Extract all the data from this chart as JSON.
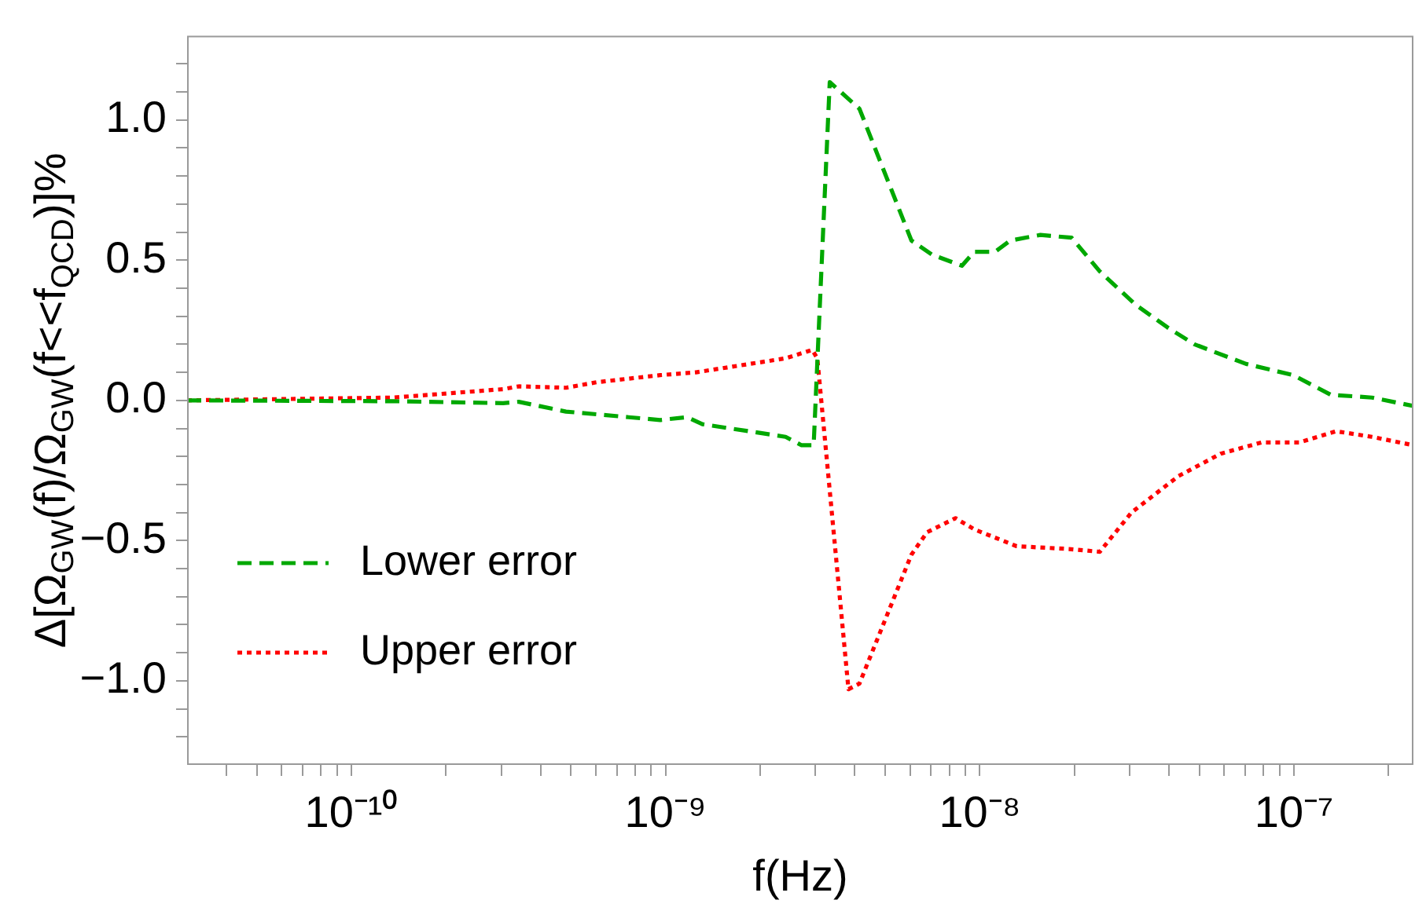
{
  "chart_data": {
    "type": "line",
    "xlabel": "f(Hz)",
    "ylabel": "Δ[Ω$_{GW}$(f)/Ω$_{GW}$(f<<f$_{QCD}$)]%",
    "log": "x",
    "xlim": [
      3e-11,
      2.4e-07
    ],
    "ylim": [
      -1.3,
      1.3
    ],
    "xticks": [
      {
        "value": 4e-11,
        "label": null
      },
      {
        "value": 5e-11,
        "label": null
      },
      {
        "value": 6e-11,
        "label": null
      },
      {
        "value": 7e-11,
        "label": null
      },
      {
        "value": 8e-11,
        "label": null
      },
      {
        "value": 9e-11,
        "label": null
      },
      {
        "value": 1e-10,
        "label": "10⁻¹⁰"
      },
      {
        "value": 2e-10,
        "label": null
      },
      {
        "value": 3e-10,
        "label": null
      },
      {
        "value": 4e-10,
        "label": null
      },
      {
        "value": 5e-10,
        "label": null
      },
      {
        "value": 6e-10,
        "label": null
      },
      {
        "value": 7e-10,
        "label": null
      },
      {
        "value": 8e-10,
        "label": null
      },
      {
        "value": 9e-10,
        "label": null
      },
      {
        "value": 1e-09,
        "label": "10⁻⁹"
      },
      {
        "value": 2e-09,
        "label": null
      },
      {
        "value": 3e-09,
        "label": null
      },
      {
        "value": 4e-09,
        "label": null
      },
      {
        "value": 5e-09,
        "label": null
      },
      {
        "value": 6e-09,
        "label": null
      },
      {
        "value": 7e-09,
        "label": null
      },
      {
        "value": 8e-09,
        "label": null
      },
      {
        "value": 9e-09,
        "label": null
      },
      {
        "value": 1e-08,
        "label": "10⁻⁸"
      },
      {
        "value": 2e-08,
        "label": null
      },
      {
        "value": 3e-08,
        "label": null
      },
      {
        "value": 4e-08,
        "label": null
      },
      {
        "value": 5e-08,
        "label": null
      },
      {
        "value": 6e-08,
        "label": null
      },
      {
        "value": 7e-08,
        "label": null
      },
      {
        "value": 8e-08,
        "label": null
      },
      {
        "value": 9e-08,
        "label": null
      },
      {
        "value": 1e-07,
        "label": "10⁻⁷"
      },
      {
        "value": 2e-07,
        "label": null
      }
    ],
    "yticks": [
      {
        "value": -1.2,
        "label": null
      },
      {
        "value": -1.1,
        "label": null
      },
      {
        "value": -1.0,
        "label": "−1.0"
      },
      {
        "value": -0.9,
        "label": null
      },
      {
        "value": -0.8,
        "label": null
      },
      {
        "value": -0.7,
        "label": null
      },
      {
        "value": -0.6,
        "label": null
      },
      {
        "value": -0.5,
        "label": "−0.5"
      },
      {
        "value": -0.4,
        "label": null
      },
      {
        "value": -0.3,
        "label": null
      },
      {
        "value": -0.2,
        "label": null
      },
      {
        "value": -0.1,
        "label": null
      },
      {
        "value": 0,
        "label": "0.0"
      },
      {
        "value": 0.1,
        "label": null
      },
      {
        "value": 0.2,
        "label": null
      },
      {
        "value": 0.3,
        "label": null
      },
      {
        "value": 0.4,
        "label": null
      },
      {
        "value": 0.5,
        "label": "0.5"
      },
      {
        "value": 0.6,
        "label": null
      },
      {
        "value": 0.7,
        "label": null
      },
      {
        "value": 0.8,
        "label": null
      },
      {
        "value": 0.9,
        "label": null
      },
      {
        "value": 1.0,
        "label": "1.0"
      },
      {
        "value": 1.1,
        "label": null
      },
      {
        "value": 1.2,
        "label": null
      }
    ],
    "legend": "bottom left",
    "marker": "none",
    "series": [
      {
        "name": "Lower error",
        "color": "#00a800",
        "line_style": "dashed",
        "x": [
          3e-11,
          1.36e-10,
          3.04e-10,
          3.41e-10,
          4.82e-10,
          7.63e-10,
          9.61e-10,
          1.17e-09,
          1.31e-09,
          2.41e-09,
          2.71e-09,
          2.96e-09,
          3.33e-09,
          4.14e-09,
          6.06e-09,
          7.04e-09,
          8.77e-09,
          9.61e-09,
          1.12e-08,
          1.25e-08,
          1.56e-08,
          1.96e-08,
          2.41e-08,
          3.14e-08,
          3.96e-08,
          4.82e-08,
          7.04e-08,
          9.94e-08,
          1.31e-07,
          1.77e-07,
          2.4e-07
        ],
        "values": [
          0,
          -0.003,
          -0.01,
          -0.005,
          -0.04,
          -0.06,
          -0.07,
          -0.06,
          -0.085,
          -0.13,
          -0.16,
          -0.16,
          1.135,
          1.04,
          0.57,
          0.52,
          0.48,
          0.53,
          0.53,
          0.57,
          0.59,
          0.58,
          0.46,
          0.34,
          0.26,
          0.2,
          0.13,
          0.09,
          0.02,
          0.01,
          -0.02
        ]
      },
      {
        "name": "Upper error",
        "color": "#ff0000",
        "line_style": "dotted",
        "x": [
          3e-11,
          1.36e-10,
          3.04e-10,
          3.41e-10,
          4.82e-10,
          6.06e-10,
          9.61e-10,
          1.25e-09,
          2.41e-09,
          2.93e-09,
          3.04e-09,
          3.82e-09,
          4.14e-09,
          6.06e-09,
          6.8e-09,
          8.37e-09,
          9.61e-09,
          1.31e-08,
          1.92e-08,
          2.41e-08,
          3.04e-08,
          4.29e-08,
          5.85e-08,
          7.88e-08,
          1.04e-07,
          1.36e-07,
          1.77e-07,
          2.4e-07
        ],
        "values": [
          0,
          0.01,
          0.04,
          0.05,
          0.045,
          0.065,
          0.09,
          0.1,
          0.15,
          0.18,
          0.15,
          -1.03,
          -1.01,
          -0.55,
          -0.47,
          -0.42,
          -0.46,
          -0.52,
          -0.53,
          -0.54,
          -0.4,
          -0.27,
          -0.19,
          -0.15,
          -0.15,
          -0.11,
          -0.13,
          -0.16
        ]
      }
    ]
  }
}
